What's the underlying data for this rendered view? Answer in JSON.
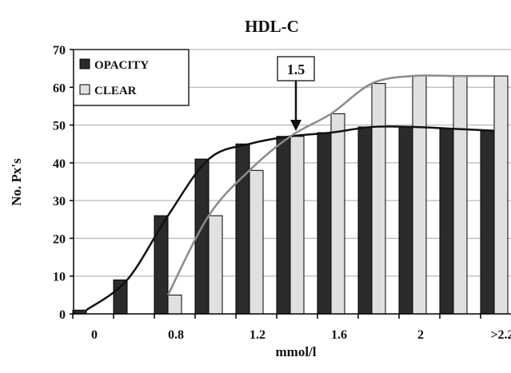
{
  "chart_data": {
    "type": "bar",
    "title": "HDL-C",
    "xlabel": "mmol/l",
    "ylabel": "No. Px's",
    "ylim": [
      0,
      70
    ],
    "yticks": [
      0,
      10,
      20,
      30,
      40,
      50,
      60,
      70
    ],
    "grid": true,
    "legend_position": "top-left",
    "category_tick_labels": [
      "0",
      "0.8",
      "1.2",
      "1.6",
      "2",
      ">2.2"
    ],
    "series": [
      {
        "name": "OPACITY",
        "color": "#2b2b2b",
        "values": [
          1,
          9,
          26,
          41,
          45,
          47,
          48,
          49.5,
          49.5,
          49,
          48.5
        ]
      },
      {
        "name": "CLEAR",
        "color": "#e0e0e0",
        "values": [
          0,
          0,
          5,
          26,
          38,
          47,
          53,
          61,
          63,
          63,
          63
        ]
      }
    ],
    "trend_lines": [
      {
        "series": "OPACITY",
        "color": "#111111"
      },
      {
        "series": "CLEAR",
        "color": "#8a8a8a"
      }
    ],
    "annotation": {
      "text": "1.5"
    }
  }
}
